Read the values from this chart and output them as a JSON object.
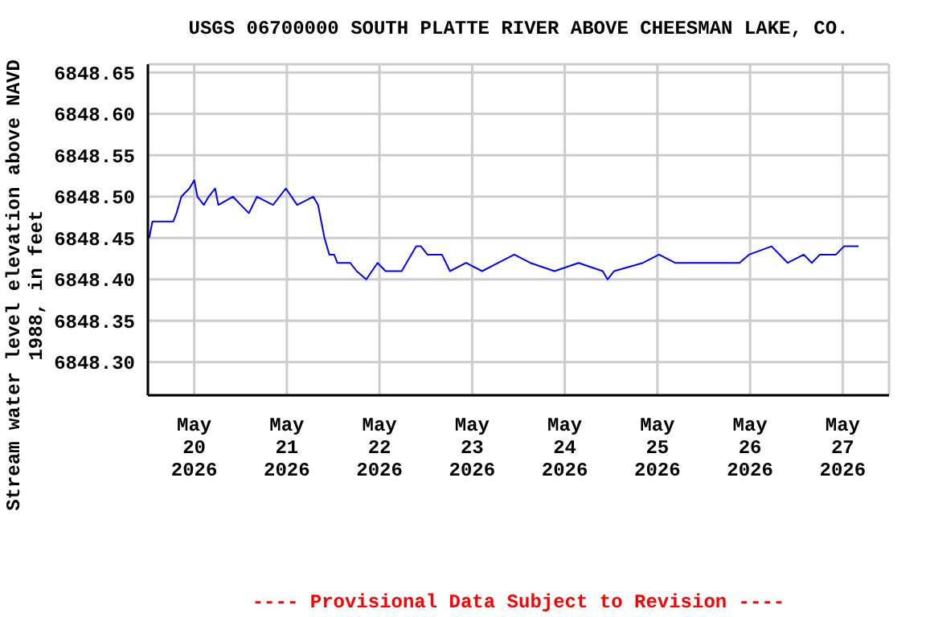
{
  "chart_data": {
    "type": "line",
    "title": "USGS 06700000 SOUTH PLATTE RIVER ABOVE CHEESMAN LAKE, CO.",
    "ylabel": "Stream water level elevation above NAVD 1988, in feet",
    "annotations": [
      "---- Provisional Data Subject to Revision ----"
    ],
    "x": [
      "2026-05-19T12:20",
      "2026-05-19T13:10",
      "2026-05-19T15:15",
      "2026-05-19T18:35",
      "2026-05-19T19:25",
      "2026-05-19T20:40",
      "2026-05-19T22:45",
      "2026-05-20T00:00",
      "2026-05-20T00:50",
      "2026-05-20T02:30",
      "2026-05-20T03:45",
      "2026-05-20T05:25",
      "2026-05-20T06:15",
      "2026-05-20T10:00",
      "2026-05-20T12:05",
      "2026-05-20T14:10",
      "2026-05-20T16:15",
      "2026-05-20T20:25",
      "2026-05-20T23:45",
      "2026-05-21T02:40",
      "2026-05-21T06:50",
      "2026-05-21T08:05",
      "2026-05-21T08:55",
      "2026-05-21T09:45",
      "2026-05-21T11:00",
      "2026-05-21T12:15",
      "2026-05-21T13:05",
      "2026-05-21T16:25",
      "2026-05-21T18:05",
      "2026-05-21T20:35",
      "2026-05-21T23:30",
      "2026-05-22T01:35",
      "2026-05-22T05:45",
      "2026-05-22T08:15",
      "2026-05-22T09:30",
      "2026-05-22T10:45",
      "2026-05-22T12:25",
      "2026-05-22T16:10",
      "2026-05-22T18:15",
      "2026-05-22T22:25",
      "2026-05-23T02:35",
      "2026-05-23T06:45",
      "2026-05-23T10:55",
      "2026-05-23T15:05",
      "2026-05-23T21:20",
      "2026-05-24T03:35",
      "2026-05-24T09:50",
      "2026-05-24T11:05",
      "2026-05-24T12:45",
      "2026-05-24T20:15",
      "2026-05-25T00:25",
      "2026-05-25T04:35",
      "2026-05-25T08:45",
      "2026-05-25T15:00",
      "2026-05-25T21:15",
      "2026-05-25T23:45",
      "2026-05-26T05:35",
      "2026-05-26T09:45",
      "2026-05-26T13:55",
      "2026-05-26T16:00",
      "2026-05-26T18:05",
      "2026-05-26T22:15",
      "2026-05-27T00:20",
      "2026-05-27T02:25",
      "2026-05-27T04:05"
    ],
    "series": [
      {
        "color": "#0000ff",
        "values": [
          6848.45,
          6848.47,
          6848.47,
          6848.47,
          6848.48,
          6848.5,
          6848.51,
          6848.52,
          6848.5,
          6848.49,
          6848.5,
          6848.51,
          6848.49,
          6848.5,
          6848.49,
          6848.48,
          6848.5,
          6848.49,
          6848.51,
          6848.49,
          6848.5,
          6848.49,
          6848.47,
          6848.45,
          6848.43,
          6848.43,
          6848.42,
          6848.42,
          6848.41,
          6848.4,
          6848.42,
          6848.41,
          6848.41,
          6848.43,
          6848.44,
          6848.44,
          6848.43,
          6848.43,
          6848.41,
          6848.42,
          6848.41,
          6848.42,
          6848.43,
          6848.42,
          6848.41,
          6848.42,
          6848.41,
          6848.4,
          6848.41,
          6848.42,
          6848.43,
          6848.42,
          6848.42,
          6848.42,
          6848.42,
          6848.43,
          6848.44,
          6848.42,
          6848.43,
          6848.42,
          6848.43,
          6848.43,
          6848.44,
          6848.44,
          6848.44
        ]
      }
    ],
    "xlim": [
      "2026-05-19T12:00",
      "2026-05-27T12:00"
    ],
    "xticks": [
      {
        "value": "2026-05-20",
        "label": "May\n20\n2026"
      },
      {
        "value": "2026-05-21",
        "label": "May\n21\n2026"
      },
      {
        "value": "2026-05-22",
        "label": "May\n22\n2026"
      },
      {
        "value": "2026-05-23",
        "label": "May\n23\n2026"
      },
      {
        "value": "2026-05-24",
        "label": "May\n24\n2026"
      },
      {
        "value": "2026-05-25",
        "label": "May\n25\n2026"
      },
      {
        "value": "2026-05-26",
        "label": "May\n26\n2026"
      },
      {
        "value": "2026-05-27",
        "label": "May\n27\n2026"
      }
    ],
    "ylim": [
      6848.26,
      6848.66
    ],
    "yticks": [
      {
        "value": 6848.3,
        "label": "6848.30"
      },
      {
        "value": 6848.35,
        "label": "6848.35"
      },
      {
        "value": 6848.4,
        "label": "6848.40"
      },
      {
        "value": 6848.45,
        "label": "6848.45"
      },
      {
        "value": 6848.5,
        "label": "6848.50"
      },
      {
        "value": 6848.55,
        "label": "6848.55"
      },
      {
        "value": 6848.6,
        "label": "6848.60"
      },
      {
        "value": 6848.65,
        "label": "6848.65"
      }
    ],
    "grid": true,
    "legend": false,
    "marker": "none",
    "line_style": "solid"
  }
}
